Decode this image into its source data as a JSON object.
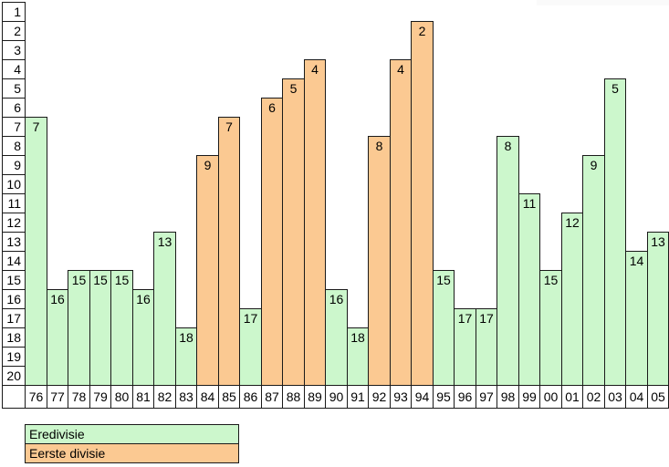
{
  "chart_data": {
    "type": "bar",
    "title": "",
    "xlabel": "",
    "ylabel": "",
    "categories": [
      "76",
      "77",
      "78",
      "79",
      "80",
      "81",
      "82",
      "83",
      "84",
      "85",
      "86",
      "87",
      "88",
      "89",
      "90",
      "91",
      "92",
      "93",
      "94",
      "95",
      "96",
      "97",
      "98",
      "99",
      "00",
      "01",
      "02",
      "03",
      "04",
      "05"
    ],
    "values": [
      7,
      16,
      15,
      15,
      15,
      16,
      13,
      18,
      9,
      7,
      17,
      6,
      5,
      4,
      16,
      18,
      8,
      4,
      2,
      15,
      17,
      17,
      8,
      11,
      15,
      12,
      9,
      5,
      14,
      13
    ],
    "series_membership": [
      "Eredivisie",
      "Eredivisie",
      "Eredivisie",
      "Eredivisie",
      "Eredivisie",
      "Eredivisie",
      "Eredivisie",
      "Eredivisie",
      "Eerste divisie",
      "Eerste divisie",
      "Eredivisie",
      "Eerste divisie",
      "Eerste divisie",
      "Eerste divisie",
      "Eredivisie",
      "Eredivisie",
      "Eerste divisie",
      "Eerste divisie",
      "Eerste divisie",
      "Eredivisie",
      "Eredivisie",
      "Eredivisie",
      "Eredivisie",
      "Eredivisie",
      "Eredivisie",
      "Eredivisie",
      "Eredivisie",
      "Eredivisie",
      "Eredivisie",
      "Eredivisie"
    ],
    "y_axis": {
      "inverted": true,
      "min": 1,
      "max": 20,
      "ticks": [
        1,
        2,
        3,
        4,
        5,
        6,
        7,
        8,
        9,
        10,
        11,
        12,
        13,
        14,
        15,
        16,
        17,
        18,
        19,
        20
      ]
    },
    "grid": false,
    "bar_labels_shown": true,
    "legend": {
      "position": "bottom-left",
      "entries": [
        {
          "label": "Eredivisie",
          "color": "#ccf7cc"
        },
        {
          "label": "Eerste divisie",
          "color": "#fbc992"
        }
      ]
    },
    "colors": {
      "bar_border": "#1a1a1a",
      "axis_cell_background": "#ffffff",
      "page_background": "#ffffff"
    }
  }
}
